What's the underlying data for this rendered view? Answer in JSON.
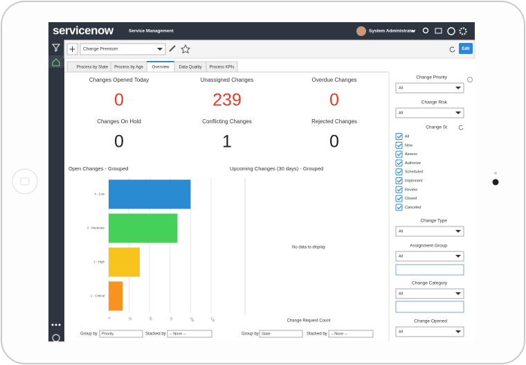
{
  "header": {
    "brand": "servicenow",
    "product": "Service Management",
    "user": "System Administrator"
  },
  "toolbar": {
    "dashboard": "Change Premium",
    "edit": "Edit"
  },
  "tabs": [
    "Process by State",
    "Process by Age",
    "Overview",
    "Data Quality",
    "Process KPIs"
  ],
  "widgets": [
    {
      "title": "Changes Opened Today",
      "value": 0
    },
    {
      "title": "Unassigned Changes",
      "value": 239
    },
    {
      "title": "Overdue Changes",
      "value": 0
    },
    {
      "title": "Changes On Hold",
      "value": 0
    },
    {
      "title": "Conflicting Changes",
      "value": 1
    },
    {
      "title": "Rejected Changes",
      "value": 0
    }
  ],
  "chart_data": {
    "type": "bar",
    "orientation": "horizontal",
    "title": "Open Changes - Grouped",
    "categories": [
      "4 - Low",
      "3 - Moderate",
      "2 - High",
      "1 - Critical"
    ],
    "values": [
      100,
      84,
      38,
      17
    ],
    "colors": [
      "#2a8bd3",
      "#45d159",
      "#f9c31d",
      "#f7931e"
    ],
    "xlim": [
      0,
      125
    ],
    "xticks": [
      0,
      25,
      50,
      75,
      100,
      125
    ],
    "grid": true
  },
  "upcoming": {
    "title": "Upcoming Changes (30 days) - Grouped",
    "empty": "No data to display",
    "axis_label": "Change Request Count"
  },
  "controls": [
    {
      "group_label": "Group by",
      "group": "Priority",
      "stack_label": "Stacked by",
      "stack": "-- None --"
    },
    {
      "group_label": "Group by",
      "group": "State",
      "stack_label": "Stacked by",
      "stack": "-- None --"
    }
  ],
  "filters": [
    {
      "label": "Change Priority",
      "value": "All"
    },
    {
      "label": "Change Risk",
      "value": "All"
    },
    {
      "label": "Change St",
      "options": [
        "All",
        "New",
        "Assess",
        "Authorize",
        "Scheduled",
        "Implement",
        "Review",
        "Closed",
        "Canceled"
      ]
    },
    {
      "label": "Change Type",
      "value": "All"
    },
    {
      "label": "Assignment Group",
      "value": "All"
    },
    {
      "label": "Change Category",
      "value": "All"
    },
    {
      "label": "Change Opened",
      "value": "All"
    }
  ]
}
